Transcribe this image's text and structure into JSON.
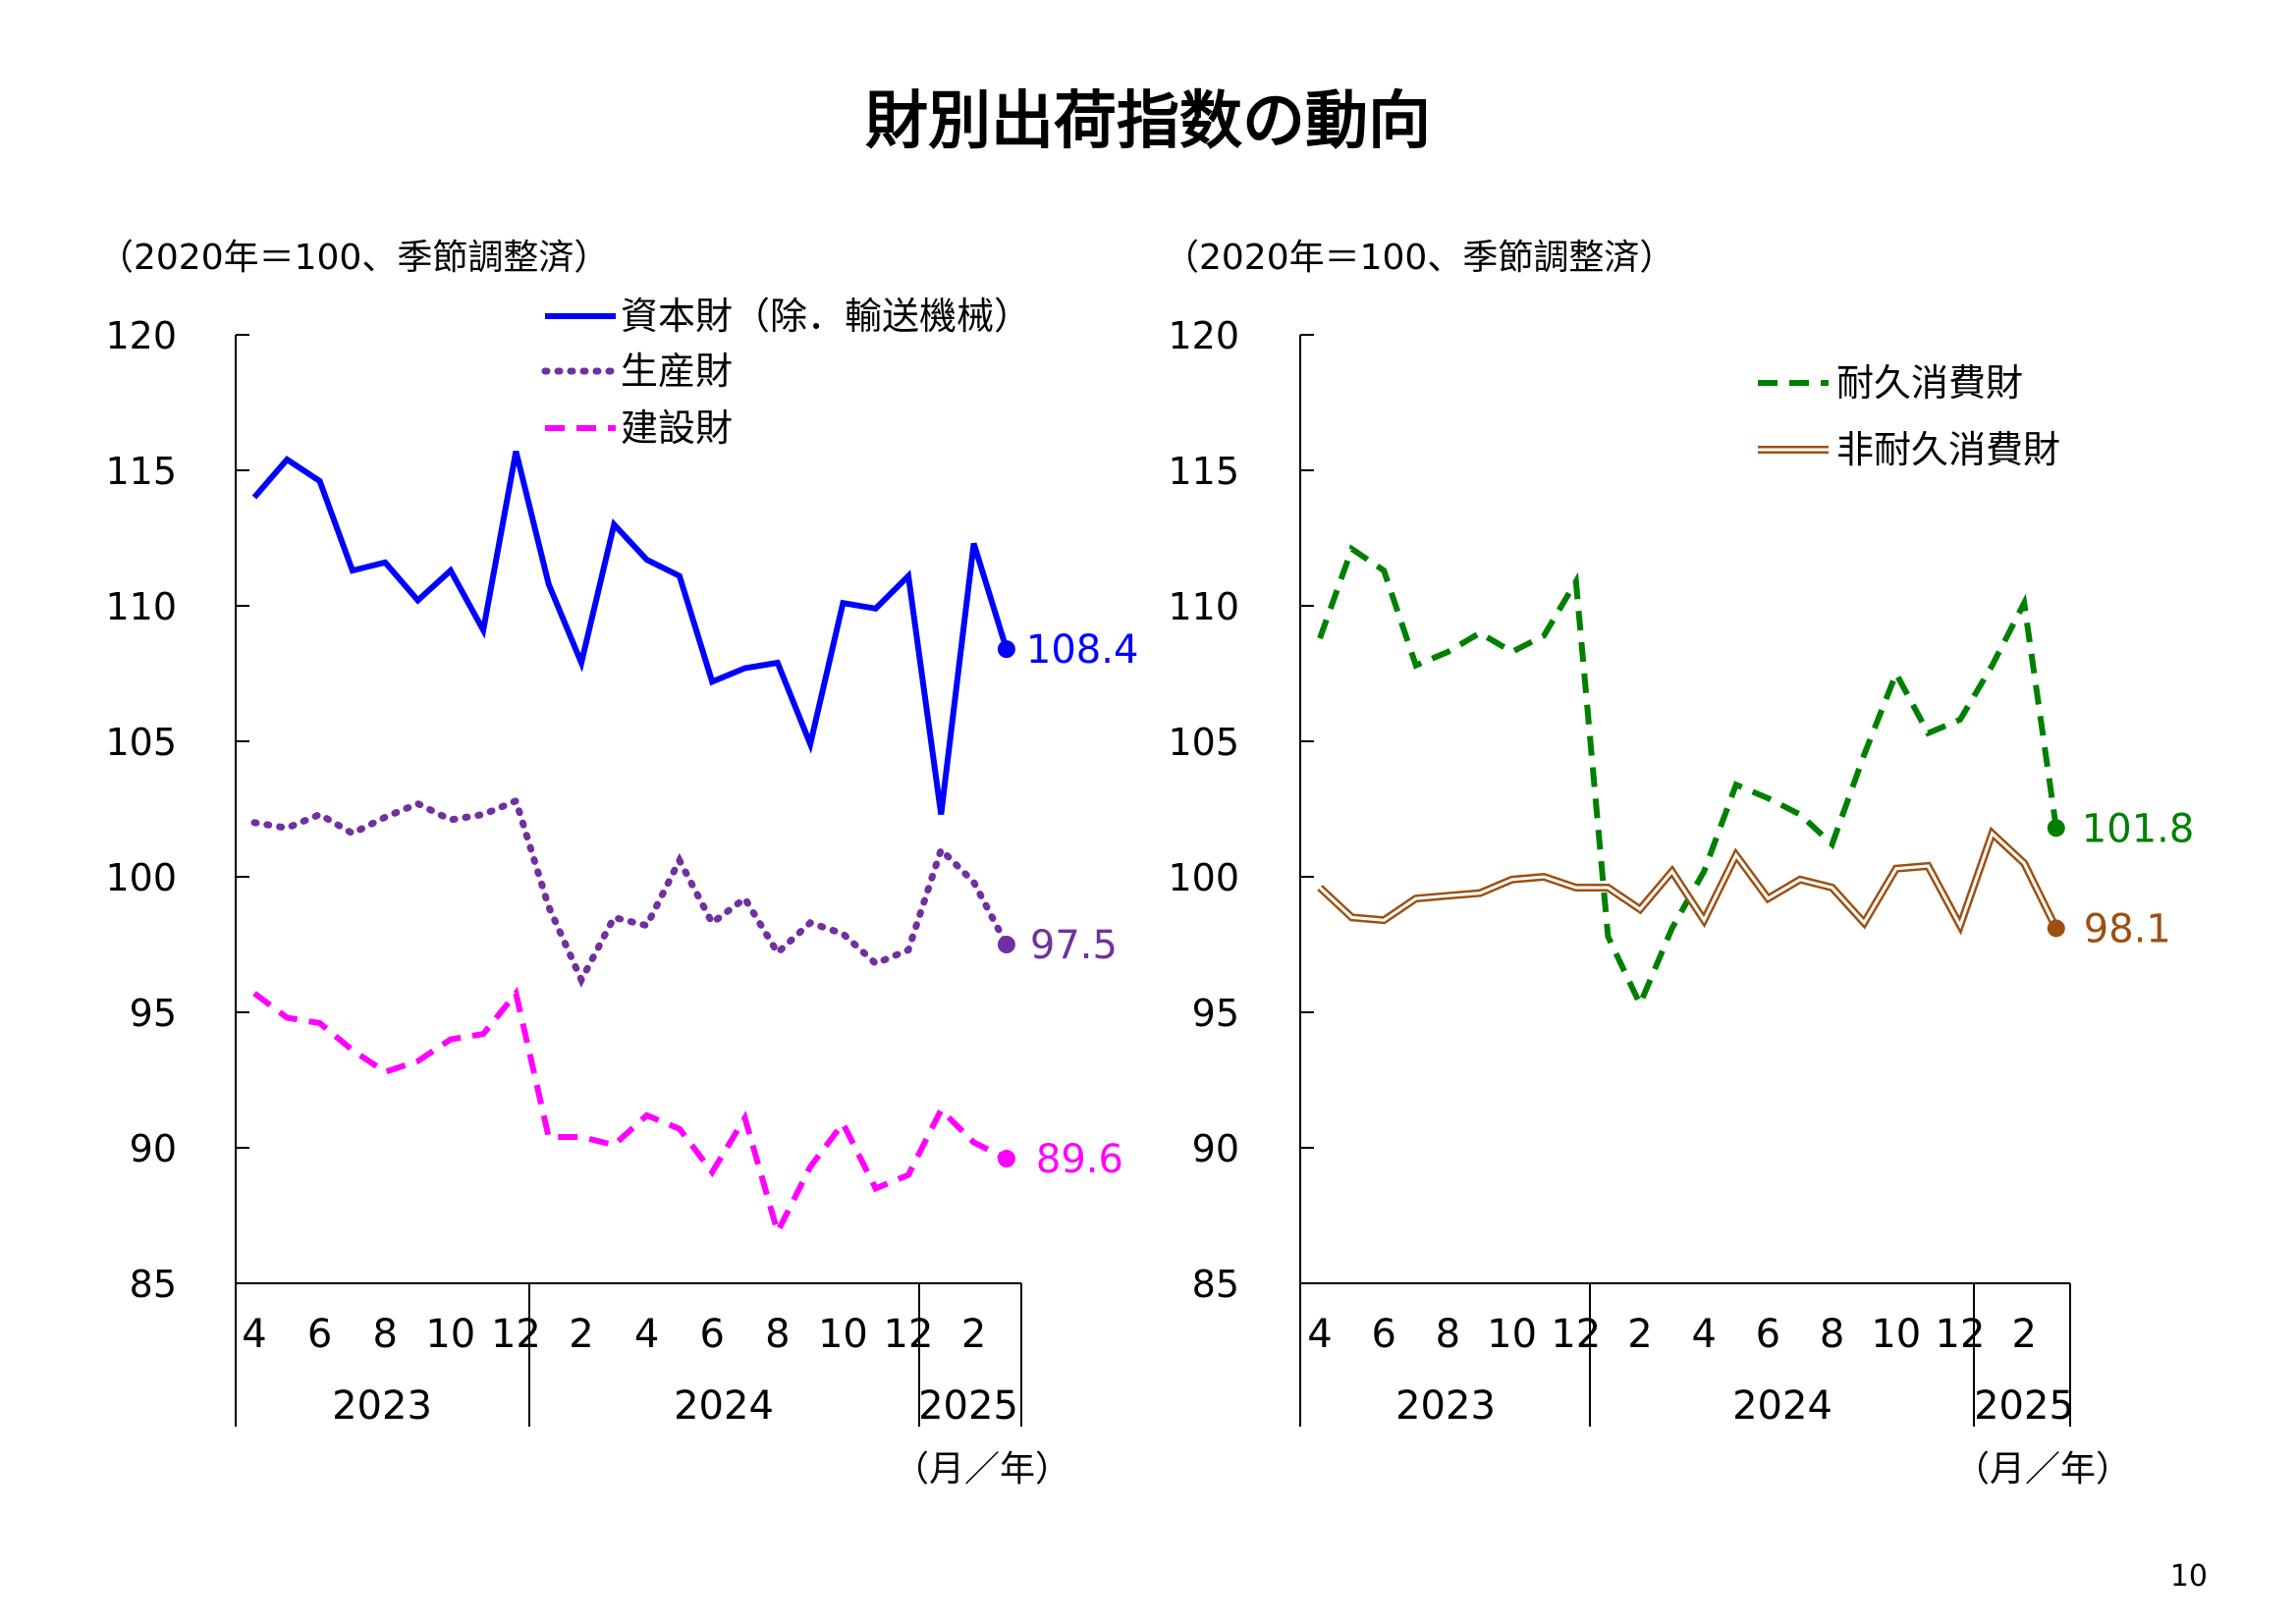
{
  "page_title": "財別出荷指数の動向",
  "page_number": "10",
  "chart_data": [
    {
      "type": "line",
      "unit_note": "（2020年＝100、季節調整済）",
      "xlabel": "（月／年）",
      "ylim": [
        85,
        120
      ],
      "yticks": [
        "85",
        "90",
        "95",
        "100",
        "105",
        "110",
        "115",
        "120"
      ],
      "month_labels": [
        "4",
        "6",
        "8",
        "10",
        "12",
        "2",
        "4",
        "6",
        "8",
        "10",
        "12",
        "2"
      ],
      "year_labels": [
        "2023",
        "2024",
        "2025"
      ],
      "x": [
        "2023-04",
        "2023-05",
        "2023-06",
        "2023-07",
        "2023-08",
        "2023-09",
        "2023-10",
        "2023-11",
        "2023-12",
        "2024-01",
        "2024-02",
        "2024-03",
        "2024-04",
        "2024-05",
        "2024-06",
        "2024-07",
        "2024-08",
        "2024-09",
        "2024-10",
        "2024-11",
        "2024-12",
        "2025-01",
        "2025-02",
        "2025-03"
      ],
      "series": [
        {
          "name": "資本財（除．輸送機械）",
          "color": "#0000ff",
          "style": "solid",
          "end_label": "108.4",
          "values": [
            114.0,
            115.4,
            114.6,
            111.3,
            111.6,
            110.2,
            111.3,
            109.1,
            115.7,
            110.8,
            107.9,
            113.0,
            111.7,
            111.1,
            107.2,
            107.7,
            107.9,
            104.9,
            110.1,
            109.9,
            111.1,
            102.3,
            112.3,
            108.4
          ]
        },
        {
          "name": "生産財",
          "color": "#7030a0",
          "style": "dotted",
          "end_label": "97.5",
          "values": [
            102.0,
            101.8,
            102.3,
            101.6,
            102.2,
            102.7,
            102.1,
            102.3,
            102.8,
            98.9,
            96.2,
            98.5,
            98.2,
            100.6,
            98.3,
            99.2,
            97.2,
            98.3,
            97.9,
            96.8,
            97.3,
            101.0,
            99.8,
            97.5
          ]
        },
        {
          "name": "建設財",
          "color": "#ff00ff",
          "style": "dashed",
          "end_label": "89.6",
          "values": [
            95.7,
            94.8,
            94.6,
            93.6,
            92.8,
            93.2,
            94.0,
            94.2,
            95.7,
            90.4,
            90.4,
            90.1,
            91.2,
            90.7,
            89.1,
            91.1,
            86.9,
            89.3,
            90.9,
            88.5,
            89.0,
            91.4,
            90.2,
            89.6
          ]
        }
      ]
    },
    {
      "type": "line",
      "unit_note": "（2020年＝100、季節調整済）",
      "xlabel": "（月／年）",
      "ylim": [
        85,
        120
      ],
      "yticks": [
        "85",
        "90",
        "95",
        "100",
        "105",
        "110",
        "115",
        "120"
      ],
      "month_labels": [
        "4",
        "6",
        "8",
        "10",
        "12",
        "2",
        "4",
        "6",
        "8",
        "10",
        "12",
        "2"
      ],
      "year_labels": [
        "2023",
        "2024",
        "2025"
      ],
      "x": [
        "2023-04",
        "2023-05",
        "2023-06",
        "2023-07",
        "2023-08",
        "2023-09",
        "2023-10",
        "2023-11",
        "2023-12",
        "2024-01",
        "2024-02",
        "2024-03",
        "2024-04",
        "2024-05",
        "2024-06",
        "2024-07",
        "2024-08",
        "2024-09",
        "2024-10",
        "2024-11",
        "2024-12",
        "2025-01",
        "2025-02",
        "2025-03"
      ],
      "series": [
        {
          "name": "耐久消費財",
          "color": "#008000",
          "style": "dashed",
          "end_label": "101.8",
          "values": [
            108.8,
            112.1,
            111.3,
            107.8,
            108.3,
            109.0,
            108.3,
            108.9,
            110.9,
            97.8,
            95.3,
            98.1,
            100.2,
            103.4,
            102.9,
            102.3,
            101.2,
            104.5,
            107.5,
            105.3,
            105.8,
            107.8,
            110.1,
            101.8
          ]
        },
        {
          "name": "非耐久消費財",
          "color": "#9c5012",
          "style": "double",
          "end_label": "98.1",
          "values": [
            99.6,
            98.5,
            98.4,
            99.2,
            99.3,
            99.4,
            99.9,
            100.0,
            99.6,
            99.6,
            98.8,
            100.2,
            98.4,
            100.8,
            99.2,
            99.9,
            99.6,
            98.3,
            100.3,
            100.4,
            98.2,
            101.6,
            100.5,
            98.1
          ]
        }
      ]
    }
  ]
}
